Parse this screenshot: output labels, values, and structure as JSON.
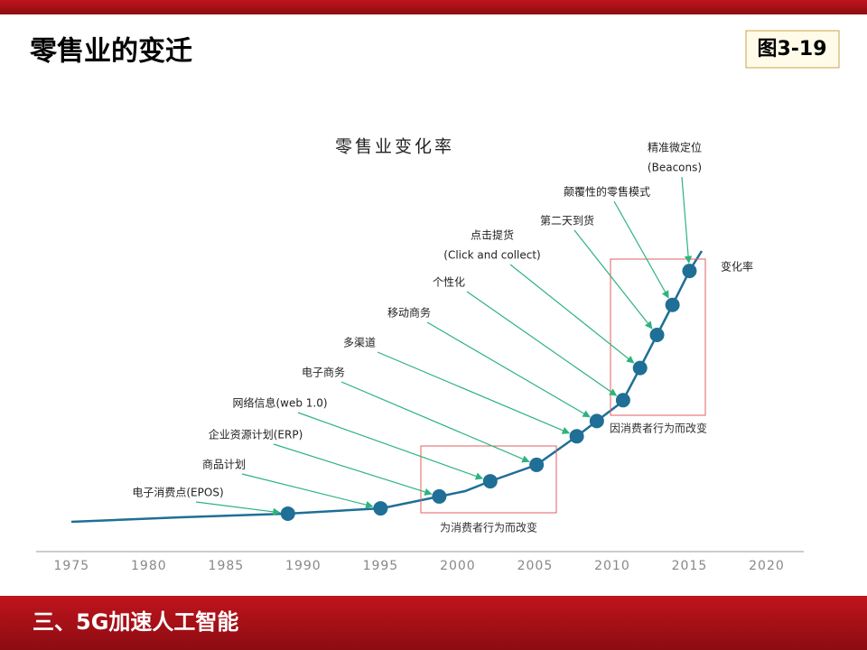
{
  "header": {
    "title": "零售业的变迁",
    "badge": "图3-19"
  },
  "footer": {
    "title": "三、5G加速人工智能"
  },
  "chart_data": {
    "type": "line",
    "title": "零售业变化率",
    "series_label": "变化率",
    "x": [
      1989,
      1995,
      1998.8,
      2002.1,
      2005.1,
      2007.7,
      2009,
      2010.7,
      2011.8,
      2012.9,
      2013.9,
      2015
    ],
    "color": "#1f6f96",
    "annotation_color": "#2db37f",
    "xlim": [
      1972.7,
      2022.4
    ],
    "xticks": [
      1975,
      1980,
      1985,
      1990,
      1995,
      2000,
      2005,
      2010,
      2015,
      2020
    ],
    "annotations": [
      [
        "电子消费点(EPOS)"
      ],
      [
        "商品计划"
      ],
      [
        "企业资源计划(ERP)"
      ],
      [
        "网络信息(web 1.0)"
      ],
      [
        "电子商务"
      ],
      [
        "多渠道"
      ],
      [
        "移动商务"
      ],
      [
        "个性化"
      ],
      [
        "点击提货",
        "(Click and collect)"
      ],
      [
        "第二天到货"
      ],
      [
        "颠覆性的零售模式"
      ],
      [
        "精准微定位",
        "(Beacons)"
      ]
    ],
    "regions": [
      {
        "label": "为消费者行为而改变"
      },
      {
        "label": "因消费者行为而改变"
      }
    ]
  }
}
